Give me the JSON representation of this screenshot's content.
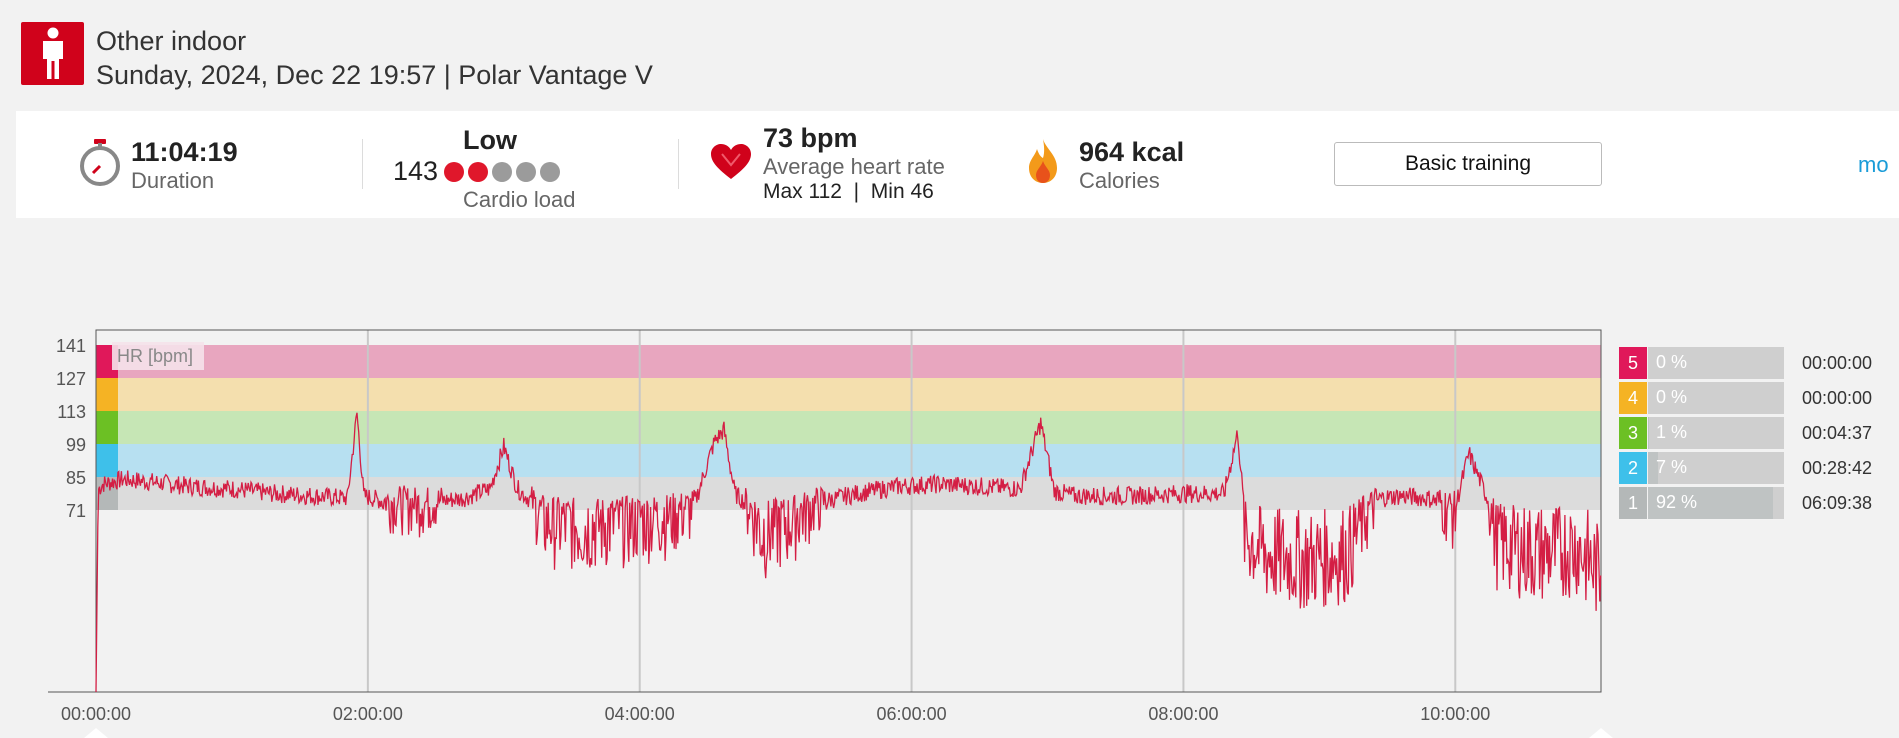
{
  "header": {
    "title": "Other indoor",
    "subtitle": "Sunday, 2024, Dec 22 19:57 | Polar Vantage V"
  },
  "summary": {
    "duration_value": "11:04:19",
    "duration_label": "Duration",
    "cardio_value": "143",
    "cardio_level": "Low",
    "cardio_label": "Cardio load",
    "cardio_dots_filled": 2,
    "cardio_dots_total": 5,
    "hr_value": "73 bpm",
    "hr_label": "Average heart rate",
    "hr_minmax": "Max 112  |  Min 46",
    "calories_value": "964 kcal",
    "calories_label": "Calories",
    "training_button": "Basic training",
    "more_link": "mo"
  },
  "chart": {
    "series_label": "HR [bpm]",
    "y_ticks": [
      "141",
      "127",
      "113",
      "99",
      "85",
      "71"
    ],
    "x_ticks": [
      "00:00:00",
      "02:00:00",
      "04:00:00",
      "06:00:00",
      "08:00:00",
      "10:00:00"
    ]
  },
  "zones": [
    {
      "num": "5",
      "pct": "0 %",
      "time": "00:00:00",
      "color": "#e0185a",
      "fill": 0
    },
    {
      "num": "4",
      "pct": "0 %",
      "time": "00:00:00",
      "color": "#f5b324",
      "fill": 0
    },
    {
      "num": "3",
      "pct": "1 %",
      "time": "00:04:37",
      "color": "#6cc024",
      "fill": 0.01
    },
    {
      "num": "2",
      "pct": "7 %",
      "time": "00:28:42",
      "color": "#3ec0ea",
      "fill": 0.07
    },
    {
      "num": "1",
      "pct": "92 %",
      "time": "06:09:38",
      "color": "#b4b8b8",
      "fill": 0.92
    }
  ],
  "chart_data": {
    "type": "line",
    "title": "",
    "xlabel": "",
    "ylabel": "HR [bpm]",
    "ylim": [
      0,
      141
    ],
    "xlim": [
      "00:00:00",
      "11:04:19"
    ],
    "grid": true,
    "zone_bands": [
      {
        "zone": 5,
        "from": 127,
        "to": 141,
        "color": "#e8a6bf"
      },
      {
        "zone": 4,
        "from": 113,
        "to": 127,
        "color": "#f4dfae"
      },
      {
        "zone": 3,
        "from": 99,
        "to": 113,
        "color": "#c6e6b5"
      },
      {
        "zone": 2,
        "from": 85,
        "to": 99,
        "color": "#b7e0f1"
      },
      {
        "zone": 1,
        "from": 71,
        "to": 85,
        "color": "#dcdcdc"
      }
    ],
    "series": [
      {
        "color": "#d41e44",
        "x_hours": [
          0,
          0.02,
          0.05,
          0.2,
          0.4,
          0.7,
          1.0,
          1.3,
          1.6,
          1.85,
          1.92,
          1.97,
          2.1,
          2.4,
          2.7,
          2.9,
          3.0,
          3.1,
          3.3,
          3.6,
          3.9,
          4.2,
          4.4,
          4.55,
          4.62,
          4.7,
          4.9,
          5.1,
          5.3,
          5.6,
          5.9,
          6.2,
          6.5,
          6.8,
          6.95,
          7.05,
          7.2,
          7.6,
          8.0,
          8.3,
          8.4,
          8.45,
          8.6,
          8.9,
          9.2,
          9.45,
          9.6,
          9.8,
          10.0,
          10.1,
          10.3,
          10.6,
          10.9,
          11.07
        ],
        "y_bpm": [
          46,
          80,
          82,
          84,
          83,
          81,
          80,
          78,
          77,
          76,
          112,
          77,
          75,
          74,
          76,
          80,
          98,
          80,
          70,
          69,
          70,
          71,
          73,
          100,
          105,
          78,
          68,
          70,
          74,
          78,
          81,
          82,
          81,
          80,
          108,
          79,
          77,
          77,
          78,
          78,
          104,
          68,
          65,
          64,
          65,
          76,
          77,
          76,
          72,
          95,
          67,
          65,
          66,
          62
        ]
      }
    ]
  }
}
